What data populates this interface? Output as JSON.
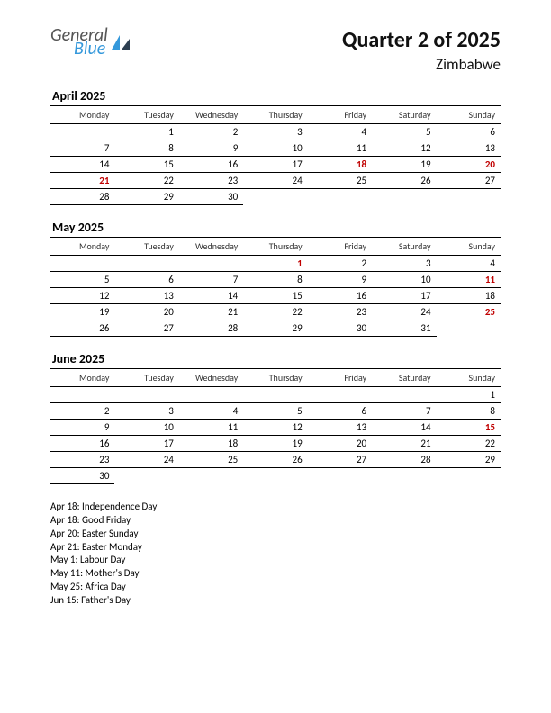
{
  "logo": {
    "line1": "General",
    "line2": "Blue",
    "color1": "#555555",
    "color2": "#3498db",
    "mark_color": "#3498db"
  },
  "header": {
    "title": "Quarter 2 of 2025",
    "subtitle": "Zimbabwe"
  },
  "style": {
    "holiday_color": "#c00000",
    "title_fontsize": 24,
    "subtitle_fontsize": 17,
    "month_fontsize": 14,
    "dayhdr_fontsize": 10,
    "cell_fontsize": 11,
    "background_color": "#ffffff",
    "text_color": "#000000",
    "border_color": "#000000"
  },
  "day_headers": [
    "Monday",
    "Tuesday",
    "Wednesday",
    "Thursday",
    "Friday",
    "Saturday",
    "Sunday"
  ],
  "months": [
    {
      "title": "April 2025",
      "weeks": [
        [
          "",
          "1",
          "2",
          "3",
          "4",
          "5",
          "6"
        ],
        [
          "7",
          "8",
          "9",
          "10",
          "11",
          "12",
          "13"
        ],
        [
          "14",
          "15",
          "16",
          "17",
          "18",
          "19",
          "20"
        ],
        [
          "21",
          "22",
          "23",
          "24",
          "25",
          "26",
          "27"
        ],
        [
          "28",
          "29",
          "30",
          "",
          "",
          "",
          ""
        ]
      ],
      "holidays": [
        "18",
        "20",
        "21"
      ]
    },
    {
      "title": "May 2025",
      "weeks": [
        [
          "",
          "",
          "",
          "1",
          "2",
          "3",
          "4"
        ],
        [
          "5",
          "6",
          "7",
          "8",
          "9",
          "10",
          "11"
        ],
        [
          "12",
          "13",
          "14",
          "15",
          "16",
          "17",
          "18"
        ],
        [
          "19",
          "20",
          "21",
          "22",
          "23",
          "24",
          "25"
        ],
        [
          "26",
          "27",
          "28",
          "29",
          "30",
          "31",
          ""
        ]
      ],
      "holidays": [
        "1",
        "11",
        "25"
      ]
    },
    {
      "title": "June 2025",
      "weeks": [
        [
          "",
          "",
          "",
          "",
          "",
          "",
          "1"
        ],
        [
          "2",
          "3",
          "4",
          "5",
          "6",
          "7",
          "8"
        ],
        [
          "9",
          "10",
          "11",
          "12",
          "13",
          "14",
          "15"
        ],
        [
          "16",
          "17",
          "18",
          "19",
          "20",
          "21",
          "22"
        ],
        [
          "23",
          "24",
          "25",
          "26",
          "27",
          "28",
          "29"
        ],
        [
          "30",
          "",
          "",
          "",
          "",
          "",
          ""
        ]
      ],
      "holidays": [
        "15"
      ]
    }
  ],
  "holiday_list": [
    "Apr 18: Independence Day",
    "Apr 18: Good Friday",
    "Apr 20: Easter Sunday",
    "Apr 21: Easter Monday",
    "May 1: Labour Day",
    "May 11: Mother's Day",
    "May 25: Africa Day",
    "Jun 15: Father's Day"
  ]
}
